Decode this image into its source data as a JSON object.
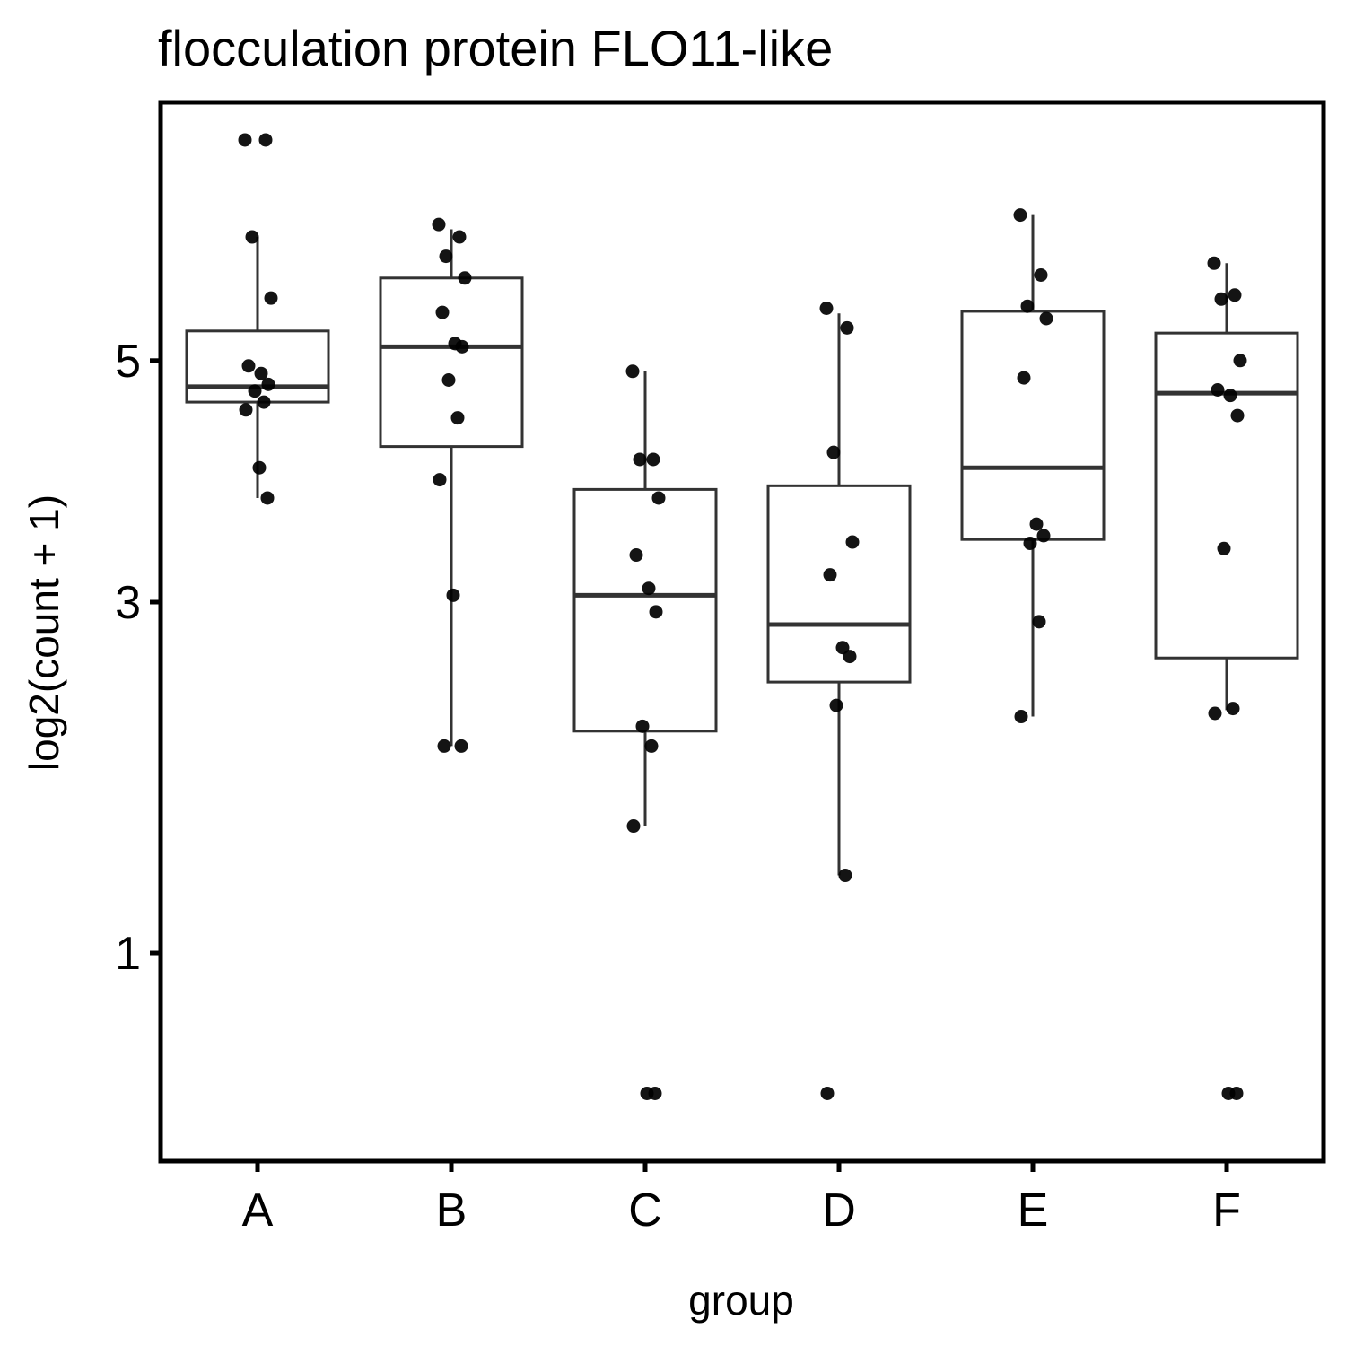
{
  "chart_data": {
    "type": "box",
    "title": "flocculation protein FLO11-like",
    "xlabel": "group",
    "ylabel": "log2(count + 1)",
    "y_scale": "sqrt",
    "ylim": [
      0.32,
      7.7
    ],
    "y_ticks": [
      1,
      3,
      5
    ],
    "y_tick_labels": [
      "1",
      "3",
      "5"
    ],
    "categories": [
      "A",
      "B",
      "C",
      "D",
      "E",
      "F"
    ],
    "grid": false,
    "legend": "none",
    "colors": {
      "points": "#000000",
      "box_stroke": "#333333",
      "axis": "#000000"
    },
    "boxes": [
      {
        "group": "A",
        "whisker_low": 3.8,
        "q1": 4.62,
        "median": 4.76,
        "q3": 5.28,
        "whisker_high": 6.22
      },
      {
        "group": "B",
        "whisker_low": 2.05,
        "q1": 4.23,
        "median": 5.13,
        "q3": 5.8,
        "whisker_high": 6.3
      },
      {
        "group": "C",
        "whisker_low": 1.6,
        "q1": 2.14,
        "median": 3.05,
        "q3": 3.87,
        "whisker_high": 4.9
      },
      {
        "group": "D",
        "whisker_low": 1.35,
        "q1": 2.45,
        "median": 2.84,
        "q3": 3.9,
        "whisker_high": 5.45
      },
      {
        "group": "E",
        "whisker_low": 2.23,
        "q1": 3.47,
        "median": 4.05,
        "q3": 5.47,
        "whisker_high": 6.45
      },
      {
        "group": "F",
        "whisker_low": 2.27,
        "q1": 2.61,
        "median": 4.7,
        "q3": 5.26,
        "whisker_high": 5.95
      }
    ],
    "points": [
      {
        "group": "A",
        "values": [
          7.27,
          7.27,
          6.22,
          5.6,
          4.95,
          4.88,
          4.78,
          4.72,
          4.62,
          4.55,
          4.05,
          3.8
        ]
      },
      {
        "group": "B",
        "values": [
          6.35,
          6.22,
          6.02,
          5.8,
          5.46,
          5.16,
          5.13,
          4.82,
          4.48,
          3.95,
          3.05,
          2.05,
          2.05
        ]
      },
      {
        "group": "C",
        "values": [
          4.9,
          4.12,
          4.12,
          3.8,
          3.35,
          3.1,
          2.93,
          2.17,
          2.05,
          1.6,
          0.5,
          0.5
        ]
      },
      {
        "group": "D",
        "values": [
          5.5,
          5.31,
          4.18,
          3.45,
          3.2,
          2.68,
          2.62,
          2.3,
          1.35,
          0.5
        ]
      },
      {
        "group": "E",
        "values": [
          6.45,
          5.83,
          5.52,
          5.4,
          4.84,
          3.59,
          3.5,
          3.44,
          2.86,
          2.23
        ]
      },
      {
        "group": "F",
        "values": [
          5.95,
          5.63,
          5.59,
          5.0,
          4.73,
          4.68,
          4.5,
          3.4,
          2.28,
          2.25,
          0.5,
          0.5
        ]
      }
    ]
  }
}
